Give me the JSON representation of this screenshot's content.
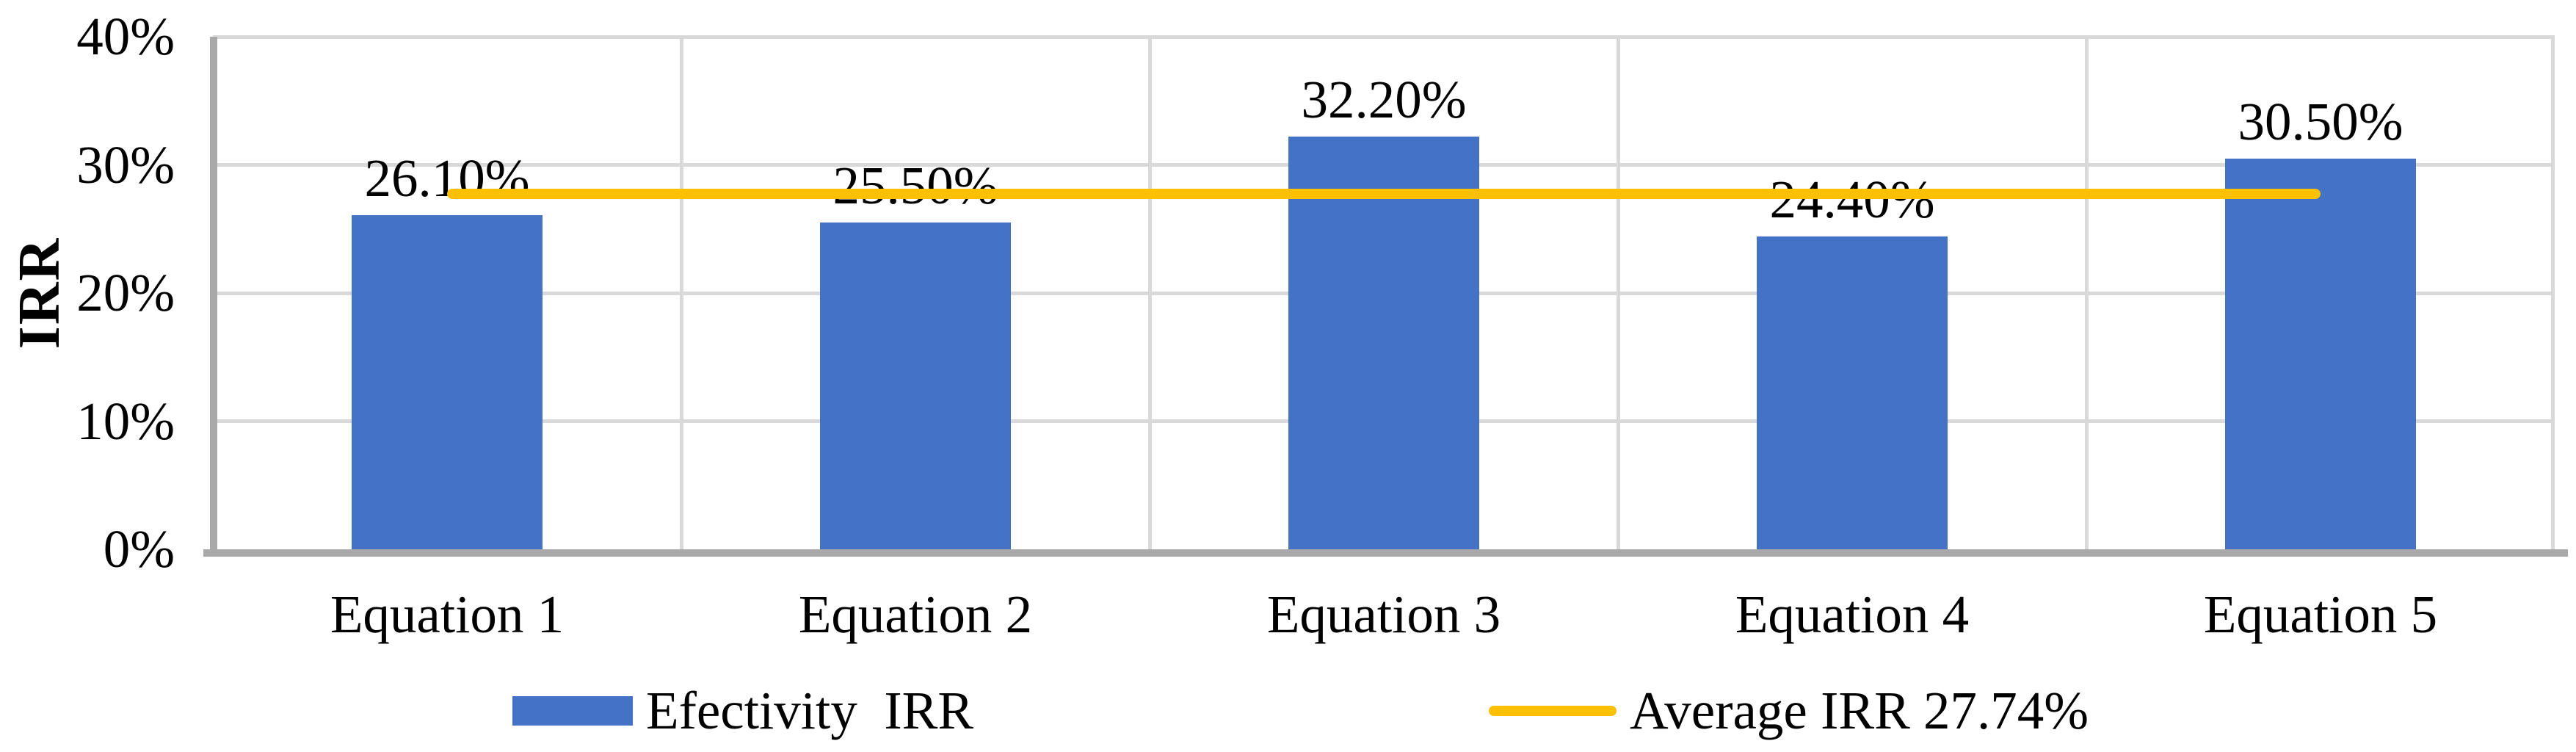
{
  "chart_data": {
    "type": "bar",
    "title": "",
    "ylabel": "IRR",
    "xlabel": "",
    "categories": [
      "Equation 1",
      "Equation 2",
      "Equation 3",
      "Equation 4",
      "Equation 5"
    ],
    "series": [
      {
        "name": "Efectivity  IRR",
        "type": "bar",
        "color": "#4472C4",
        "values": [
          26.1,
          25.5,
          32.2,
          24.4,
          30.5
        ],
        "data_labels": [
          "26.10%",
          "25.50%",
          "32.20%",
          "24.40%",
          "30.50%"
        ]
      },
      {
        "name": "Average IRR 27.74%",
        "type": "line",
        "color": "#FFC000",
        "value": 27.74
      }
    ],
    "ylim": [
      0,
      40
    ],
    "y_ticks": [
      {
        "value": 40,
        "label": "40%"
      },
      {
        "value": 30,
        "label": "30%"
      },
      {
        "value": 20,
        "label": "20%"
      },
      {
        "value": 10,
        "label": "10%"
      },
      {
        "value": 0,
        "label": "0%"
      }
    ],
    "grid": true,
    "legend_position": "bottom"
  },
  "legend": {
    "items": [
      {
        "label": "Efectivity  IRR",
        "swatch": "rect",
        "color": "#4472C4"
      },
      {
        "label": "Average IRR 27.74%",
        "swatch": "line",
        "color": "#FFC000"
      }
    ]
  },
  "colors": {
    "bar": "#4472C4",
    "average_line": "#FFC000",
    "gridline": "#D9D9D9",
    "axis_line": "#A9A9A9",
    "text": "#000000",
    "background": "#FFFFFF"
  }
}
